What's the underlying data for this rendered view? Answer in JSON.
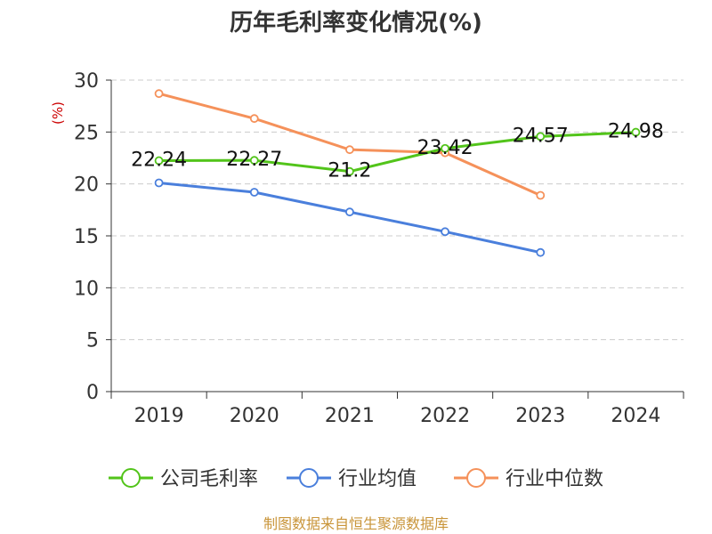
{
  "chart_data": {
    "type": "line",
    "title": "历年毛利率变化情况(%)",
    "ylabel": "(%)",
    "categories": [
      "2019",
      "2020",
      "2021",
      "2022",
      "2023",
      "2024"
    ],
    "yticks": [
      "0",
      "5",
      "10",
      "15",
      "20",
      "25",
      "30"
    ],
    "ylim": [
      0,
      30
    ],
    "grid": true,
    "legend_position": "bottom",
    "series": [
      {
        "name": "公司毛利率",
        "color": "#52c41a",
        "values": [
          22.24,
          22.27,
          21.2,
          23.42,
          24.57,
          24.98
        ],
        "labels": [
          "22.24",
          "22.27",
          "21.2",
          "23.42",
          "24.57",
          "24.98"
        ]
      },
      {
        "name": "行业均值",
        "color": "#4a7fdc",
        "values": [
          20.1,
          19.2,
          17.3,
          15.4,
          13.4,
          null
        ]
      },
      {
        "name": "行业中位数",
        "color": "#f5915a",
        "values": [
          28.7,
          26.3,
          23.3,
          23.0,
          18.9,
          null
        ]
      }
    ],
    "source": "制图数据来自恒生聚源数据库"
  }
}
